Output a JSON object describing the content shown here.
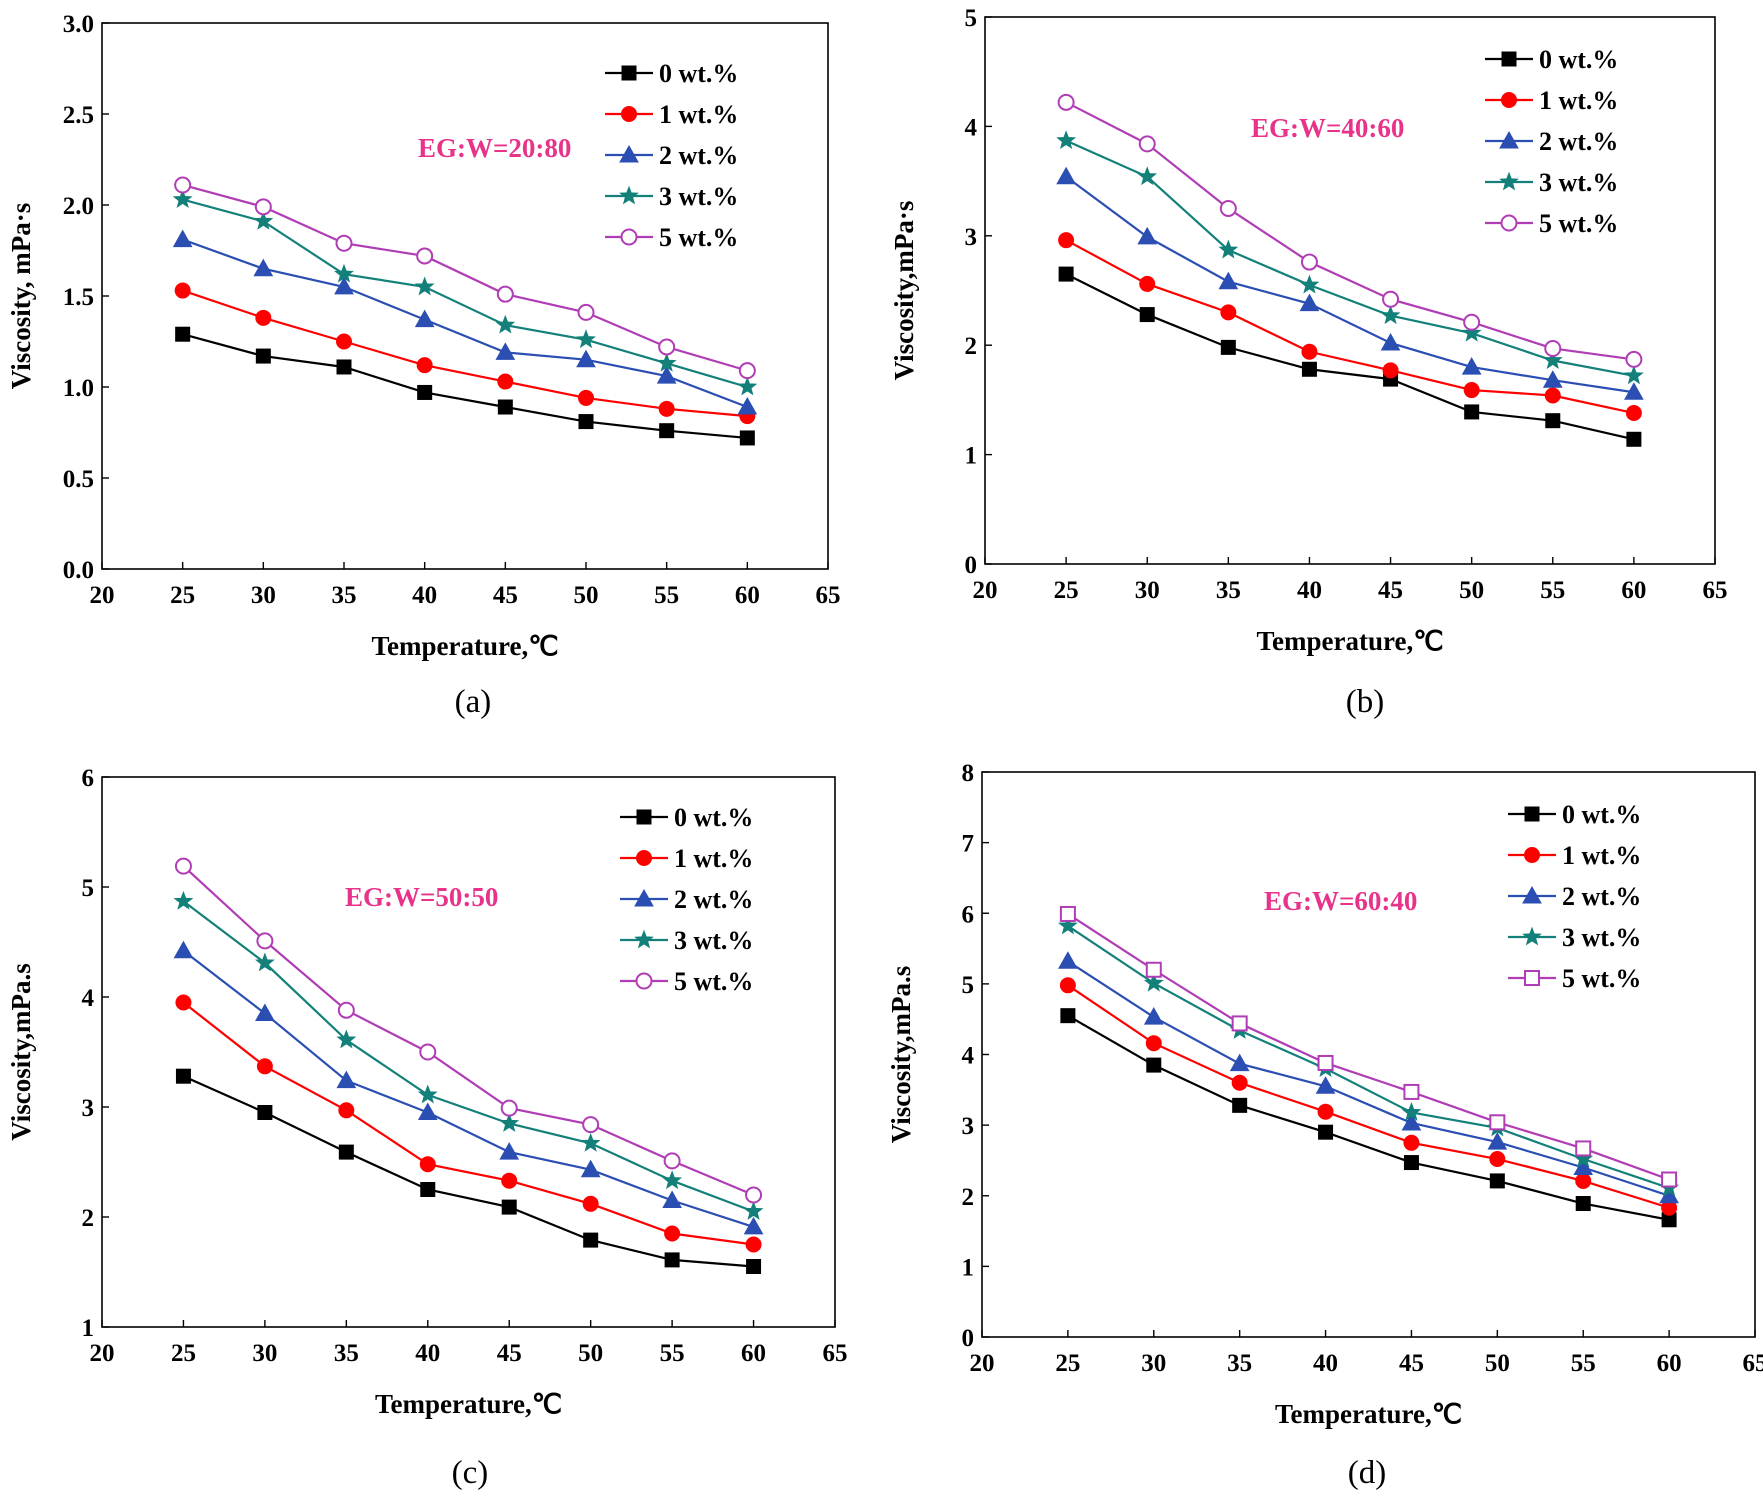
{
  "colors": {
    "s0": "#000000",
    "s1": "#ff0000",
    "s2": "#2b4eb3",
    "s3": "#13807a",
    "s5": "#b03db5",
    "annotation": "#e8338a"
  },
  "chart_data": [
    {
      "type": "line",
      "caption": "(a)",
      "annotation": "EG:W=20:80",
      "xlabel": "Temperature,℃",
      "ylabel": "Viscosity, mPa·s",
      "xlim": [
        20,
        65
      ],
      "ylim": [
        0.0,
        3.0
      ],
      "x_ticks": [
        "20",
        "25",
        "30",
        "35",
        "40",
        "45",
        "50",
        "55",
        "60",
        "65"
      ],
      "y_ticks": [
        "0.0",
        "0.5",
        "1.0",
        "1.5",
        "2.0",
        "2.5",
        "3.0"
      ],
      "legend_position": "top-right",
      "x": [
        25,
        30,
        35,
        40,
        45,
        50,
        55,
        60
      ],
      "series": [
        {
          "name": "0 wt.%",
          "marker": "square",
          "values": [
            1.29,
            1.17,
            1.11,
            0.97,
            0.89,
            0.81,
            0.76,
            0.72
          ]
        },
        {
          "name": "1 wt.%",
          "marker": "circle",
          "values": [
            1.53,
            1.38,
            1.25,
            1.12,
            1.03,
            0.94,
            0.88,
            0.84
          ]
        },
        {
          "name": "2 wt.%",
          "marker": "triangle",
          "values": [
            1.81,
            1.65,
            1.55,
            1.37,
            1.19,
            1.15,
            1.06,
            0.89
          ]
        },
        {
          "name": "3 wt.%",
          "marker": "star",
          "values": [
            2.03,
            1.91,
            1.62,
            1.55,
            1.34,
            1.26,
            1.13,
            1.0
          ]
        },
        {
          "name": "5 wt.%",
          "marker": "circle-open",
          "values": [
            2.11,
            1.99,
            1.79,
            1.72,
            1.51,
            1.41,
            1.22,
            1.09
          ]
        }
      ]
    },
    {
      "type": "line",
      "caption": "(b)",
      "annotation": "EG:W=40:60",
      "xlabel": "Temperature,℃",
      "ylabel": "Viscosity,mPa·s",
      "xlim": [
        20,
        65
      ],
      "ylim": [
        0,
        5
      ],
      "x_ticks": [
        "20",
        "25",
        "30",
        "35",
        "40",
        "45",
        "50",
        "55",
        "60",
        "65"
      ],
      "y_ticks": [
        "0",
        "1",
        "2",
        "3",
        "4",
        "5"
      ],
      "legend_position": "top-right",
      "x": [
        25,
        30,
        35,
        40,
        45,
        50,
        55,
        60
      ],
      "series": [
        {
          "name": "0 wt.%",
          "marker": "square",
          "values": [
            2.65,
            2.28,
            1.98,
            1.78,
            1.69,
            1.39,
            1.31,
            1.14
          ]
        },
        {
          "name": "1 wt.%",
          "marker": "circle",
          "values": [
            2.96,
            2.56,
            2.3,
            1.94,
            1.77,
            1.59,
            1.54,
            1.38
          ]
        },
        {
          "name": "2 wt.%",
          "marker": "triangle",
          "values": [
            3.54,
            2.99,
            2.58,
            2.38,
            2.02,
            1.8,
            1.68,
            1.57
          ]
        },
        {
          "name": "3 wt.%",
          "marker": "star",
          "values": [
            3.87,
            3.54,
            2.87,
            2.55,
            2.27,
            2.11,
            1.86,
            1.72
          ]
        },
        {
          "name": "5 wt.%",
          "marker": "circle-open",
          "values": [
            4.22,
            3.84,
            3.25,
            2.76,
            2.42,
            2.21,
            1.97,
            1.87
          ]
        }
      ]
    },
    {
      "type": "line",
      "caption": "(c)",
      "annotation": "EG:W=50:50",
      "xlabel": "Temperature,℃",
      "ylabel": "Viscosity,mPa.s",
      "xlim": [
        20,
        65
      ],
      "ylim": [
        1,
        6
      ],
      "x_ticks": [
        "20",
        "25",
        "30",
        "35",
        "40",
        "45",
        "50",
        "55",
        "60",
        "65"
      ],
      "y_ticks": [
        "1",
        "2",
        "3",
        "4",
        "5",
        "6"
      ],
      "legend_position": "top-right",
      "x": [
        25,
        30,
        35,
        40,
        45,
        50,
        55,
        60
      ],
      "series": [
        {
          "name": "0 wt.%",
          "marker": "square",
          "values": [
            3.28,
            2.95,
            2.59,
            2.25,
            2.09,
            1.79,
            1.61,
            1.55
          ]
        },
        {
          "name": "1 wt.%",
          "marker": "circle",
          "values": [
            3.95,
            3.37,
            2.97,
            2.48,
            2.33,
            2.12,
            1.85,
            1.75
          ]
        },
        {
          "name": "2 wt.%",
          "marker": "triangle",
          "values": [
            4.42,
            3.85,
            3.24,
            2.95,
            2.59,
            2.43,
            2.15,
            1.91
          ]
        },
        {
          "name": "3 wt.%",
          "marker": "star",
          "values": [
            4.87,
            4.31,
            3.61,
            3.11,
            2.85,
            2.67,
            2.33,
            2.05
          ]
        },
        {
          "name": "5 wt.%",
          "marker": "circle-open",
          "values": [
            5.19,
            4.51,
            3.88,
            3.5,
            2.99,
            2.84,
            2.51,
            2.2
          ]
        }
      ]
    },
    {
      "type": "line",
      "caption": "(d)",
      "annotation": "EG:W=60:40",
      "xlabel": "Temperature,℃",
      "ylabel": "Viscosity,mPa.s",
      "xlim": [
        20,
        65
      ],
      "ylim": [
        0,
        8
      ],
      "x_ticks": [
        "20",
        "25",
        "30",
        "35",
        "40",
        "45",
        "50",
        "55",
        "60",
        "65"
      ],
      "y_ticks": [
        "0",
        "1",
        "2",
        "3",
        "4",
        "5",
        "6",
        "7",
        "8"
      ],
      "legend_position": "top-right",
      "x": [
        25,
        30,
        35,
        40,
        45,
        50,
        55,
        60
      ],
      "series": [
        {
          "name": "0 wt.%",
          "marker": "square",
          "values": [
            4.55,
            3.85,
            3.28,
            2.9,
            2.47,
            2.21,
            1.89,
            1.66
          ]
        },
        {
          "name": "1 wt.%",
          "marker": "circle",
          "values": [
            4.98,
            4.16,
            3.6,
            3.19,
            2.75,
            2.52,
            2.21,
            1.83
          ]
        },
        {
          "name": "2 wt.%",
          "marker": "triangle",
          "values": [
            5.32,
            4.53,
            3.87,
            3.55,
            3.03,
            2.76,
            2.4,
            2.0
          ]
        },
        {
          "name": "3 wt.%",
          "marker": "star",
          "values": [
            5.82,
            5.01,
            4.34,
            3.8,
            3.18,
            2.96,
            2.52,
            2.11
          ]
        },
        {
          "name": "5 wt.%",
          "marker": "square-open",
          "values": [
            5.99,
            5.2,
            4.44,
            3.88,
            3.47,
            3.04,
            2.67,
            2.23
          ]
        }
      ]
    }
  ]
}
